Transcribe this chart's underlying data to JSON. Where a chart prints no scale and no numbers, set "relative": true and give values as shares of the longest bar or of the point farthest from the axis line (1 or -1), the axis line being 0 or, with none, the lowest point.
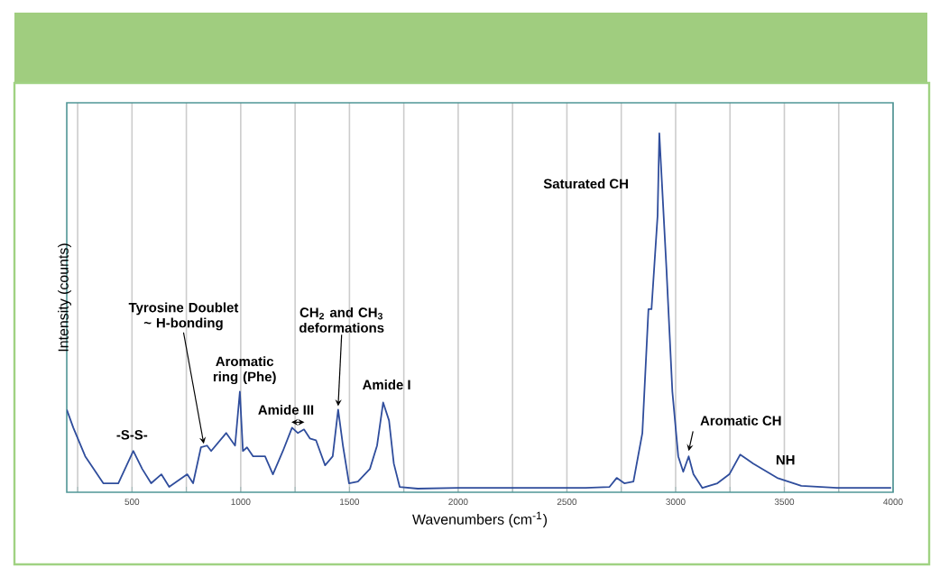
{
  "chart_data": {
    "type": "line",
    "relative": true,
    "xlabel": "Wavenumbers (cm$^{-1}$)",
    "ylabel": "Intensity (counts)",
    "xlim": [
      200,
      4000
    ],
    "xticks": [
      {
        "value": 250,
        "label": null
      },
      500,
      {
        "value": 750,
        "label": null
      },
      1000,
      {
        "value": 1250,
        "label": null
      },
      1500,
      {
        "value": 1750,
        "label": null
      },
      2000,
      {
        "value": 2250,
        "label": null
      },
      2500,
      {
        "value": 2750,
        "label": null
      },
      3000,
      {
        "value": 3250,
        "label": null
      },
      3500,
      {
        "value": 3750,
        "label": null
      },
      4000
    ],
    "grid": "x",
    "series": [
      {
        "color": "#2f4d9c",
        "x": [
          200,
          230,
          285,
          368,
          437,
          506,
          547,
          588,
          635,
          671,
          754,
          781,
          817,
          845,
          864,
          933,
          974,
          996,
          1010,
          1029,
          1057,
          1112,
          1148,
          1194,
          1236,
          1263,
          1291,
          1318,
          1346,
          1388,
          1423,
          1448,
          1470,
          1498,
          1539,
          1594,
          1627,
          1655,
          1682,
          1704,
          1731,
          1814,
          2000,
          2250,
          2586,
          2696,
          2729,
          2764,
          2806,
          2847,
          2875,
          2889,
          2917,
          2925,
          2958,
          2985,
          3012,
          3035,
          3060,
          3082,
          3123,
          3192,
          3247,
          3297,
          3357,
          3467,
          3578,
          3743,
          3991
        ],
        "values": [
          0.23,
          0.18,
          0.1,
          0.025,
          0.025,
          0.115,
          0.065,
          0.025,
          0.05,
          0.015,
          0.05,
          0.025,
          0.125,
          0.13,
          0.115,
          0.165,
          0.13,
          0.28,
          0.115,
          0.125,
          0.1,
          0.1,
          0.05,
          0.115,
          0.18,
          0.165,
          0.175,
          0.15,
          0.145,
          0.075,
          0.1,
          0.23,
          0.13,
          0.025,
          0.03,
          0.065,
          0.13,
          0.25,
          0.2,
          0.08,
          0.015,
          0.01,
          0.012,
          0.012,
          0.012,
          0.015,
          0.04,
          0.025,
          0.03,
          0.165,
          0.51,
          0.51,
          0.77,
          1.0,
          0.62,
          0.28,
          0.1,
          0.057,
          0.1,
          0.05,
          0.012,
          0.025,
          0.05,
          0.105,
          0.08,
          0.04,
          0.018,
          0.012,
          0.012
        ]
      }
    ],
    "annotations": [
      {
        "text": "-S-S-",
        "x": 506,
        "y": 0.115
      },
      {
        "text": "Tyrosine Doublet ~ H-bonding",
        "x": 830,
        "y": 0.125
      },
      {
        "text": "Aromatic ring (Phe)",
        "x": 996,
        "y": 0.28
      },
      {
        "text": "Amide III",
        "x": 1263,
        "y": 0.175
      },
      {
        "text": "CH$_{2}$ and CH$_{3}$ deformations",
        "x": 1448,
        "y": 0.23
      },
      {
        "text": "Amide I",
        "x": 1655,
        "y": 0.25
      },
      "Saturated CH",
      {
        "text": "Aromatic CH",
        "x": 3060,
        "y": 0.1
      },
      {
        "text": "NH",
        "x": 3300,
        "y": 0.105
      }
    ]
  }
}
